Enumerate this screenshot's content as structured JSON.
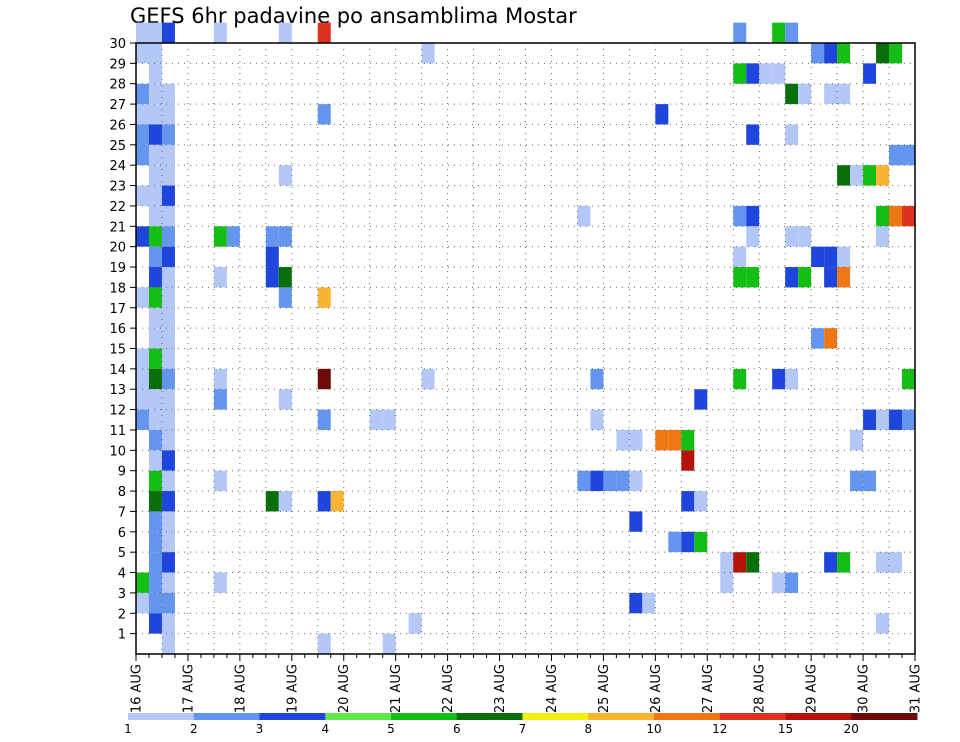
{
  "chart_data": {
    "type": "heatmap",
    "title": "GEFS 6hr padavine po ansamblima Mostar",
    "xlabel": "",
    "ylabel": "",
    "x_ticks": [
      "16 AUG",
      "17 AUG",
      "18 AUG",
      "19 AUG",
      "20 AUG",
      "21 AUG",
      "22 AUG",
      "23 AUG",
      "24 AUG",
      "25 AUG",
      "26 AUG",
      "27 AUG",
      "28 AUG",
      "29 AUG",
      "30 AUG",
      "31 AUG"
    ],
    "y_ticks": [
      1,
      2,
      3,
      4,
      5,
      6,
      7,
      8,
      9,
      10,
      11,
      12,
      13,
      14,
      15,
      16,
      17,
      18,
      19,
      20,
      21,
      22,
      23,
      24,
      25,
      26,
      27,
      28,
      29,
      30
    ],
    "xlim": [
      0,
      60
    ],
    "ylim": [
      0,
      30
    ],
    "grid": true,
    "legend_position": "bottom",
    "legend_labels": [
      "1",
      "2",
      "3",
      "4",
      "5",
      "6",
      "7",
      "8",
      "10",
      "12",
      "15",
      "20"
    ],
    "legend_colors": [
      "#b4c8f8",
      "#6496f0",
      "#1e46dc",
      "#64e650",
      "#14be14",
      "#0a6e0a",
      "#f0f014",
      "#f8b432",
      "#f07814",
      "#dc321e",
      "#b4140a",
      "#6e0a0a"
    ],
    "cells": [
      [
        0,
        30,
        1
      ],
      [
        1,
        30,
        1
      ],
      [
        2,
        30,
        3
      ],
      [
        6,
        30,
        1
      ],
      [
        11,
        30,
        1
      ],
      [
        14,
        30,
        12
      ],
      [
        46,
        30,
        2
      ],
      [
        49,
        30,
        5
      ],
      [
        50,
        30,
        2
      ],
      [
        0,
        29,
        1
      ],
      [
        1,
        29,
        1
      ],
      [
        22,
        29,
        1
      ],
      [
        52,
        29,
        2
      ],
      [
        53,
        29,
        3
      ],
      [
        54,
        29,
        5
      ],
      [
        57,
        29,
        6
      ],
      [
        58,
        29,
        5
      ],
      [
        1,
        28,
        1
      ],
      [
        46,
        28,
        5
      ],
      [
        47,
        28,
        3
      ],
      [
        48,
        28,
        1
      ],
      [
        49,
        28,
        1
      ],
      [
        56,
        28,
        3
      ],
      [
        0,
        27,
        2
      ],
      [
        1,
        27,
        1
      ],
      [
        2,
        27,
        1
      ],
      [
        50,
        27,
        6
      ],
      [
        51,
        27,
        1
      ],
      [
        53,
        27,
        1
      ],
      [
        54,
        27,
        1
      ],
      [
        0,
        26,
        1
      ],
      [
        1,
        26,
        1
      ],
      [
        2,
        26,
        1
      ],
      [
        14,
        26,
        2
      ],
      [
        40,
        26,
        3
      ],
      [
        0,
        25,
        2
      ],
      [
        1,
        25,
        3
      ],
      [
        2,
        25,
        2
      ],
      [
        47,
        25,
        3
      ],
      [
        50,
        25,
        1
      ],
      [
        0,
        24,
        2
      ],
      [
        1,
        24,
        1
      ],
      [
        2,
        24,
        1
      ],
      [
        58,
        24,
        2
      ],
      [
        59,
        24,
        2
      ],
      [
        1,
        23,
        1
      ],
      [
        2,
        23,
        1
      ],
      [
        11,
        23,
        1
      ],
      [
        54,
        23,
        6
      ],
      [
        55,
        23,
        1
      ],
      [
        56,
        23,
        5
      ],
      [
        57,
        23,
        8
      ],
      [
        0,
        22,
        1
      ],
      [
        1,
        22,
        1
      ],
      [
        2,
        22,
        3
      ],
      [
        1,
        21,
        1
      ],
      [
        2,
        21,
        1
      ],
      [
        34,
        21,
        1
      ],
      [
        46,
        21,
        2
      ],
      [
        47,
        21,
        3
      ],
      [
        57,
        21,
        5
      ],
      [
        58,
        21,
        10
      ],
      [
        59,
        21,
        12
      ],
      [
        0,
        20,
        3
      ],
      [
        1,
        20,
        5
      ],
      [
        2,
        20,
        2
      ],
      [
        6,
        20,
        5
      ],
      [
        7,
        20,
        2
      ],
      [
        10,
        20,
        2
      ],
      [
        11,
        20,
        2
      ],
      [
        47,
        20,
        1
      ],
      [
        50,
        20,
        1
      ],
      [
        51,
        20,
        1
      ],
      [
        57,
        20,
        1
      ],
      [
        1,
        19,
        2
      ],
      [
        2,
        19,
        3
      ],
      [
        10,
        19,
        3
      ],
      [
        46,
        19,
        1
      ],
      [
        52,
        19,
        3
      ],
      [
        53,
        19,
        3
      ],
      [
        54,
        19,
        1
      ],
      [
        1,
        18,
        3
      ],
      [
        2,
        18,
        1
      ],
      [
        6,
        18,
        1
      ],
      [
        10,
        18,
        3
      ],
      [
        11,
        18,
        6
      ],
      [
        46,
        18,
        5
      ],
      [
        47,
        18,
        5
      ],
      [
        50,
        18,
        3
      ],
      [
        51,
        18,
        5
      ],
      [
        53,
        18,
        3
      ],
      [
        54,
        18,
        10
      ],
      [
        0,
        17,
        1
      ],
      [
        1,
        17,
        5
      ],
      [
        2,
        17,
        1
      ],
      [
        11,
        17,
        2
      ],
      [
        14,
        17,
        8
      ],
      [
        1,
        16,
        1
      ],
      [
        2,
        16,
        1
      ],
      [
        1,
        15,
        1
      ],
      [
        2,
        15,
        1
      ],
      [
        52,
        15,
        2
      ],
      [
        53,
        15,
        10
      ],
      [
        0,
        14,
        1
      ],
      [
        1,
        14,
        5
      ],
      [
        2,
        14,
        1
      ],
      [
        0,
        13,
        1
      ],
      [
        1,
        13,
        6
      ],
      [
        2,
        13,
        2
      ],
      [
        6,
        13,
        1
      ],
      [
        14,
        13,
        20
      ],
      [
        22,
        13,
        1
      ],
      [
        35,
        13,
        2
      ],
      [
        46,
        13,
        5
      ],
      [
        49,
        13,
        3
      ],
      [
        50,
        13,
        1
      ],
      [
        59,
        13,
        5
      ],
      [
        0,
        12,
        1
      ],
      [
        1,
        12,
        1
      ],
      [
        2,
        12,
        1
      ],
      [
        6,
        12,
        2
      ],
      [
        11,
        12,
        1
      ],
      [
        43,
        12,
        3
      ],
      [
        0,
        11,
        2
      ],
      [
        1,
        11,
        1
      ],
      [
        2,
        11,
        1
      ],
      [
        14,
        11,
        2
      ],
      [
        18,
        11,
        1
      ],
      [
        19,
        11,
        1
      ],
      [
        35,
        11,
        1
      ],
      [
        56,
        11,
        3
      ],
      [
        57,
        11,
        1
      ],
      [
        58,
        11,
        3
      ],
      [
        59,
        11,
        2
      ],
      [
        1,
        10,
        2
      ],
      [
        2,
        10,
        1
      ],
      [
        37,
        10,
        1
      ],
      [
        38,
        10,
        1
      ],
      [
        40,
        10,
        10
      ],
      [
        41,
        10,
        10
      ],
      [
        42,
        10,
        5
      ],
      [
        55,
        10,
        1
      ],
      [
        1,
        9,
        1
      ],
      [
        2,
        9,
        3
      ],
      [
        42,
        9,
        15
      ],
      [
        1,
        8,
        5
      ],
      [
        2,
        8,
        1
      ],
      [
        6,
        8,
        1
      ],
      [
        34,
        8,
        2
      ],
      [
        35,
        8,
        3
      ],
      [
        36,
        8,
        2
      ],
      [
        37,
        8,
        2
      ],
      [
        38,
        8,
        1
      ],
      [
        55,
        8,
        2
      ],
      [
        56,
        8,
        2
      ],
      [
        1,
        7,
        6
      ],
      [
        2,
        7,
        3
      ],
      [
        10,
        7,
        6
      ],
      [
        11,
        7,
        1
      ],
      [
        14,
        7,
        3
      ],
      [
        15,
        7,
        8
      ],
      [
        42,
        7,
        3
      ],
      [
        43,
        7,
        1
      ],
      [
        1,
        6,
        2
      ],
      [
        2,
        6,
        1
      ],
      [
        38,
        6,
        3
      ],
      [
        1,
        5,
        2
      ],
      [
        2,
        5,
        1
      ],
      [
        41,
        5,
        2
      ],
      [
        42,
        5,
        3
      ],
      [
        43,
        5,
        5
      ],
      [
        1,
        4,
        2
      ],
      [
        2,
        4,
        3
      ],
      [
        45,
        4,
        1
      ],
      [
        46,
        4,
        15
      ],
      [
        47,
        4,
        6
      ],
      [
        53,
        4,
        3
      ],
      [
        54,
        4,
        5
      ],
      [
        57,
        4,
        1
      ],
      [
        58,
        4,
        1
      ],
      [
        0,
        3,
        5
      ],
      [
        1,
        3,
        2
      ],
      [
        2,
        3,
        1
      ],
      [
        6,
        3,
        1
      ],
      [
        45,
        3,
        1
      ],
      [
        49,
        3,
        1
      ],
      [
        50,
        3,
        2
      ],
      [
        0,
        2,
        1
      ],
      [
        1,
        2,
        2
      ],
      [
        2,
        2,
        2
      ],
      [
        38,
        2,
        3
      ],
      [
        39,
        2,
        1
      ],
      [
        1,
        1,
        3
      ],
      [
        2,
        1,
        1
      ],
      [
        21,
        1,
        1
      ],
      [
        57,
        1,
        1
      ],
      [
        2,
        0,
        1
      ],
      [
        14,
        0,
        1
      ],
      [
        19,
        0,
        1
      ]
    ]
  }
}
